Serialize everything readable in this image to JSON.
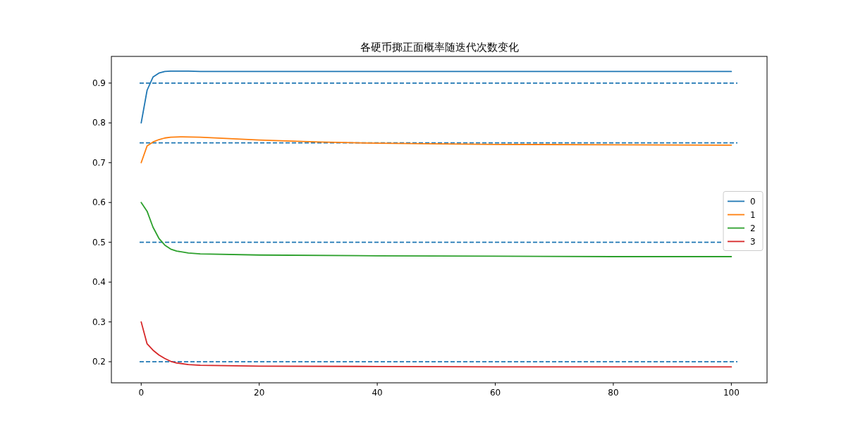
{
  "chart_data": {
    "type": "line",
    "title": "各硬币掷正面概率随迭代次数变化",
    "xlim": [
      -5.05,
      106.05
    ],
    "xticks": [
      0,
      20,
      40,
      60,
      80,
      100
    ],
    "ylim": [
      0.147,
      0.967
    ],
    "yticks": [
      {
        "value": 0.2,
        "label": "0.2"
      },
      {
        "value": 0.3,
        "label": "0.3"
      },
      {
        "value": 0.4,
        "label": "0.4"
      },
      {
        "value": 0.5,
        "label": "0.5"
      },
      {
        "value": 0.6,
        "label": "0.6"
      },
      {
        "value": 0.7,
        "label": "0.7"
      },
      {
        "value": 0.8,
        "label": "0.8"
      },
      {
        "value": 0.9,
        "label": "0.9"
      }
    ],
    "grid": false,
    "legend": "right",
    "line_style": "solid",
    "marker": "none",
    "series": [
      {
        "name": "0",
        "color": "#1f77b4",
        "x": [
          0,
          1,
          2,
          3,
          4,
          5,
          6,
          8,
          10,
          20,
          40,
          60,
          80,
          100
        ],
        "values": [
          0.8,
          0.882,
          0.915,
          0.925,
          0.929,
          0.93,
          0.93,
          0.93,
          0.929,
          0.929,
          0.929,
          0.929,
          0.929,
          0.929
        ]
      },
      {
        "name": "1",
        "color": "#ff7f0e",
        "x": [
          0,
          1,
          2,
          3,
          4,
          5,
          7,
          10,
          20,
          30,
          40,
          60,
          80,
          100
        ],
        "values": [
          0.7,
          0.742,
          0.752,
          0.758,
          0.762,
          0.764,
          0.765,
          0.764,
          0.757,
          0.752,
          0.749,
          0.746,
          0.745,
          0.744
        ]
      },
      {
        "name": "2",
        "color": "#2ca02c",
        "x": [
          0,
          1,
          2,
          3,
          4,
          5,
          6,
          8,
          10,
          20,
          40,
          60,
          80,
          100
        ],
        "values": [
          0.6,
          0.578,
          0.538,
          0.51,
          0.493,
          0.483,
          0.478,
          0.473,
          0.471,
          0.468,
          0.466,
          0.465,
          0.464,
          0.464
        ]
      },
      {
        "name": "3",
        "color": "#d62728",
        "x": [
          0,
          1,
          2,
          3,
          4,
          5,
          6,
          8,
          10,
          20,
          40,
          60,
          80,
          100
        ],
        "values": [
          0.3,
          0.245,
          0.229,
          0.217,
          0.208,
          0.201,
          0.197,
          0.193,
          0.191,
          0.189,
          0.188,
          0.187,
          0.187,
          0.187
        ]
      }
    ],
    "ref_lines": [
      {
        "axis": "y",
        "value": 0.9,
        "color": "#1f77b4",
        "line_style": "dashed"
      },
      {
        "axis": "y",
        "value": 0.75,
        "color": "#1f77b4",
        "line_style": "dashed"
      },
      {
        "axis": "y",
        "value": 0.5,
        "color": "#1f77b4",
        "line_style": "dashed"
      },
      {
        "axis": "y",
        "value": 0.2,
        "color": "#1f77b4",
        "line_style": "dashed"
      }
    ]
  }
}
